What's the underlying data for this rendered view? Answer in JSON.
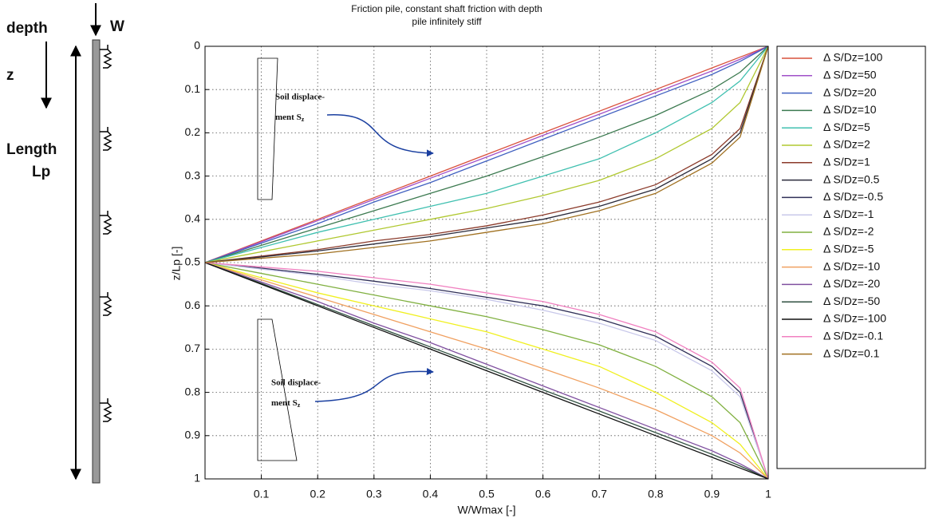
{
  "diagram": {
    "depth": "depth",
    "z": "z",
    "load": "W",
    "length": "Length",
    "lp": "Lp"
  },
  "chart_data": {
    "type": "line",
    "title": "Friction pile, constant shaft friction with depth",
    "subtitle": "pile infinitely stiff",
    "x_label": "W/Wmax [-]",
    "y_label": "z/Lp [-]",
    "xlim": [
      0,
      1
    ],
    "ylim": [
      0,
      1
    ],
    "y_reversed": true,
    "grid": true,
    "xticks": [
      0.1,
      0.2,
      0.3,
      0.4,
      0.5,
      0.6,
      0.7,
      0.8,
      0.9,
      1
    ],
    "yticks": [
      0,
      0.1,
      0.2,
      0.3,
      0.4,
      0.5,
      0.6,
      0.7,
      0.8,
      0.9,
      1
    ],
    "x": [
      0,
      0.1,
      0.2,
      0.3,
      0.4,
      0.5,
      0.6,
      0.7,
      0.8,
      0.9,
      0.95,
      1
    ],
    "series": [
      {
        "name": "Δ S/Dz=100",
        "color": "#d9503c",
        "values": [
          0.5,
          0.45,
          0.4,
          0.35,
          0.3,
          0.25,
          0.2,
          0.15,
          0.1,
          0.05,
          0.025,
          0
        ]
      },
      {
        "name": "Δ S/Dz=50",
        "color": "#a050c8",
        "values": [
          0.5,
          0.452,
          0.403,
          0.354,
          0.305,
          0.256,
          0.206,
          0.157,
          0.107,
          0.057,
          0.03,
          0
        ]
      },
      {
        "name": "Δ S/Dz=20",
        "color": "#4060c0",
        "values": [
          0.5,
          0.455,
          0.41,
          0.36,
          0.315,
          0.265,
          0.215,
          0.165,
          0.115,
          0.065,
          0.035,
          0
        ]
      },
      {
        "name": "Δ S/Dz=10",
        "color": "#3c7a50",
        "values": [
          0.5,
          0.46,
          0.42,
          0.38,
          0.34,
          0.3,
          0.255,
          0.21,
          0.16,
          0.1,
          0.06,
          0
        ]
      },
      {
        "name": "Δ S/Dz=5",
        "color": "#40c0b0",
        "values": [
          0.5,
          0.465,
          0.43,
          0.4,
          0.37,
          0.34,
          0.3,
          0.26,
          0.2,
          0.13,
          0.08,
          0
        ]
      },
      {
        "name": "Δ S/Dz=2",
        "color": "#b0c830",
        "values": [
          0.5,
          0.475,
          0.45,
          0.425,
          0.4,
          0.375,
          0.345,
          0.31,
          0.26,
          0.19,
          0.13,
          0
        ]
      },
      {
        "name": "Δ S/Dz=1",
        "color": "#8b3a2a",
        "values": [
          0.5,
          0.485,
          0.47,
          0.45,
          0.435,
          0.415,
          0.39,
          0.36,
          0.32,
          0.25,
          0.19,
          0
        ]
      },
      {
        "name": "Δ S/Dz=0.5",
        "color": "#2a2a3a",
        "values": [
          0.5,
          0.487,
          0.473,
          0.457,
          0.44,
          0.42,
          0.4,
          0.37,
          0.33,
          0.26,
          0.2,
          0
        ]
      },
      {
        "name": "Δ S/Dz=-0.5",
        "color": "#303058",
        "values": [
          0.5,
          0.513,
          0.527,
          0.543,
          0.56,
          0.58,
          0.6,
          0.63,
          0.67,
          0.74,
          0.8,
          1
        ]
      },
      {
        "name": "Δ S/Dz=-1",
        "color": "#c8c8ea",
        "values": [
          0.5,
          0.515,
          0.53,
          0.55,
          0.565,
          0.585,
          0.61,
          0.64,
          0.68,
          0.75,
          0.81,
          1
        ]
      },
      {
        "name": "Δ S/Dz=-2",
        "color": "#80b040",
        "values": [
          0.5,
          0.525,
          0.55,
          0.575,
          0.6,
          0.625,
          0.655,
          0.69,
          0.74,
          0.81,
          0.87,
          1
        ]
      },
      {
        "name": "Δ S/Dz=-5",
        "color": "#f0f020",
        "values": [
          0.5,
          0.535,
          0.57,
          0.6,
          0.63,
          0.66,
          0.7,
          0.74,
          0.8,
          0.87,
          0.92,
          1
        ]
      },
      {
        "name": "Δ S/Dz=-10",
        "color": "#f0a060",
        "values": [
          0.5,
          0.54,
          0.58,
          0.62,
          0.66,
          0.7,
          0.745,
          0.79,
          0.84,
          0.9,
          0.94,
          1
        ]
      },
      {
        "name": "Δ S/Dz=-20",
        "color": "#8050a0",
        "values": [
          0.5,
          0.545,
          0.59,
          0.64,
          0.685,
          0.735,
          0.785,
          0.835,
          0.885,
          0.935,
          0.965,
          1
        ]
      },
      {
        "name": "Δ S/Dz=-50",
        "color": "#305040",
        "values": [
          0.5,
          0.548,
          0.597,
          0.646,
          0.695,
          0.744,
          0.794,
          0.843,
          0.893,
          0.943,
          0.97,
          1
        ]
      },
      {
        "name": "Δ S/Dz=-100",
        "color": "#101010",
        "values": [
          0.5,
          0.55,
          0.6,
          0.65,
          0.7,
          0.75,
          0.8,
          0.85,
          0.9,
          0.95,
          0.975,
          1
        ]
      },
      {
        "name": "Δ S/Dz=-0.1",
        "color": "#f080c0",
        "values": [
          0.5,
          0.51,
          0.52,
          0.535,
          0.55,
          0.57,
          0.59,
          0.62,
          0.66,
          0.73,
          0.79,
          1
        ]
      },
      {
        "name": "Δ S/Dz=0.1",
        "color": "#a07020",
        "values": [
          0.5,
          0.49,
          0.48,
          0.465,
          0.45,
          0.43,
          0.41,
          0.38,
          0.34,
          0.27,
          0.21,
          0
        ]
      }
    ],
    "annotations": [
      {
        "line1": "Soil displace-",
        "line2": "ment S",
        "subscript": "z"
      },
      {
        "line1": "Soil displace-",
        "line2": "ment S",
        "subscript": "z"
      }
    ]
  }
}
